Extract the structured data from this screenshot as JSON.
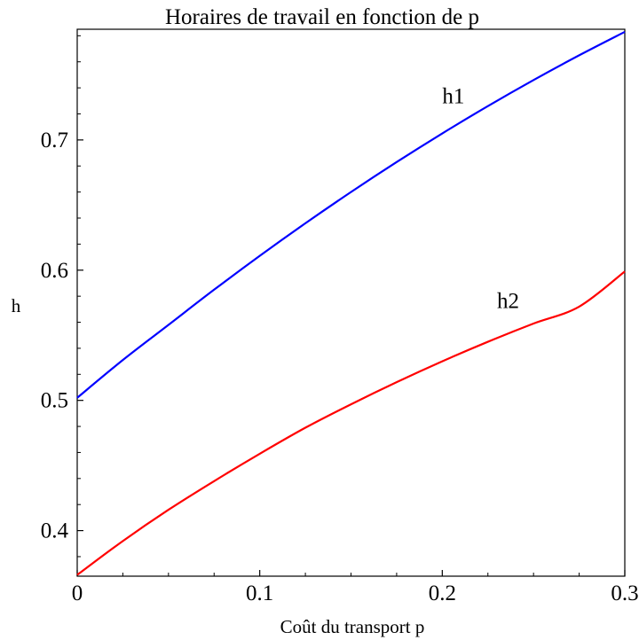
{
  "chart_data": {
    "type": "line",
    "title": "Horaires de travail en fonction de p",
    "xlabel": "Coût du transport p",
    "ylabel": "h",
    "xlim": [
      0,
      0.3
    ],
    "ylim": [
      0.365,
      0.785
    ],
    "x_ticks": [
      {
        "value": 0,
        "label": "0"
      },
      {
        "value": 0.1,
        "label": "0.1"
      },
      {
        "value": 0.2,
        "label": "0.2"
      },
      {
        "value": 0.3,
        "label": "0.3"
      }
    ],
    "y_ticks": [
      {
        "value": 0.4,
        "label": "0.4"
      },
      {
        "value": 0.5,
        "label": "0.5"
      },
      {
        "value": 0.6,
        "label": "0.6"
      },
      {
        "value": 0.7,
        "label": "0.7"
      }
    ],
    "grid": false,
    "series": [
      {
        "name": "h1",
        "color": "#0000ff",
        "x": [
          0,
          0.025,
          0.05,
          0.075,
          0.1,
          0.125,
          0.15,
          0.175,
          0.2,
          0.225,
          0.25,
          0.275,
          0.3
        ],
        "y": [
          0.502,
          0.531,
          0.558,
          0.585,
          0.611,
          0.636,
          0.66,
          0.683,
          0.705,
          0.726,
          0.746,
          0.765,
          0.783
        ]
      },
      {
        "name": "h2",
        "color": "#ff0000",
        "x": [
          0,
          0.025,
          0.05,
          0.075,
          0.1,
          0.125,
          0.15,
          0.175,
          0.2,
          0.225,
          0.25,
          0.275,
          0.3
        ],
        "y": [
          0.366,
          0.392,
          0.416,
          0.438,
          0.459,
          0.479,
          0.497,
          0.514,
          0.53,
          0.545,
          0.559,
          0.572,
          0.599
        ]
      }
    ],
    "annotations": [
      {
        "text": "h1",
        "x": 0.2,
        "y": 0.728
      },
      {
        "text": "h2",
        "x": 0.23,
        "y": 0.571
      }
    ]
  }
}
